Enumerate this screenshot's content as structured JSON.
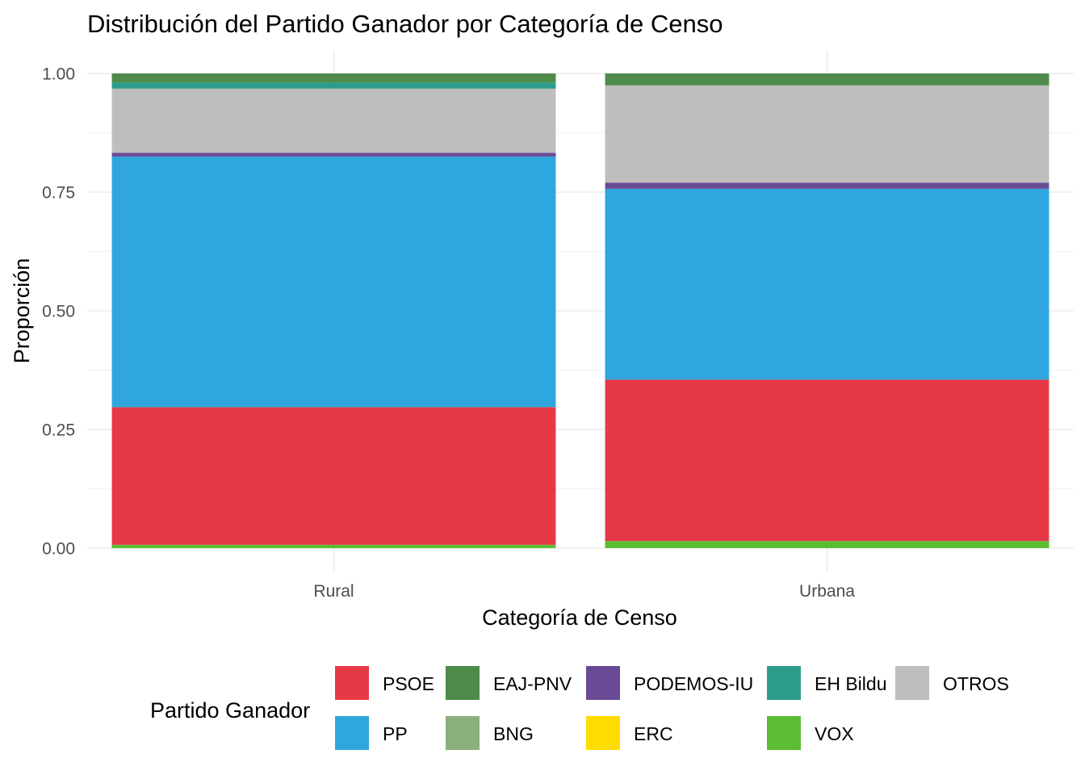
{
  "chart_data": {
    "type": "bar",
    "stacked": true,
    "title": "Distribución del Partido Ganador por Categoría de Censo",
    "xlabel": "Categoría de Censo",
    "ylabel": "Proporción",
    "ylim": [
      0,
      1
    ],
    "yticks": [
      "0.00",
      "0.25",
      "0.50",
      "0.75",
      "1.00"
    ],
    "categories": [
      "Rural",
      "Urbana"
    ],
    "series": [
      {
        "name": "VOX",
        "color": "#5bbd32",
        "values": [
          0.007,
          0.015
        ]
      },
      {
        "name": "PSOE",
        "color": "#e63946",
        "values": [
          0.29,
          0.34
        ]
      },
      {
        "name": "PP",
        "color": "#2fa6dd",
        "values": [
          0.528,
          0.402
        ]
      },
      {
        "name": "PODEMOS-IU",
        "color": "#6a4a94",
        "values": [
          0.008,
          0.013
        ]
      },
      {
        "name": "OTROS",
        "color": "#bebebe",
        "values": [
          0.135,
          0.205
        ]
      },
      {
        "name": "EH Bildu",
        "color": "#2c9c8c",
        "values": [
          0.013,
          0.0
        ]
      },
      {
        "name": "EAJ-PNV",
        "color": "#4e8b4a",
        "values": [
          0.019,
          0.025
        ]
      }
    ],
    "legend": {
      "title": "Partido Ganador",
      "position": "bottom",
      "items": [
        {
          "label": "PSOE",
          "color": "#e63946"
        },
        {
          "label": "PP",
          "color": "#2fa6dd"
        },
        {
          "label": "EAJ-PNV",
          "color": "#4e8b4a"
        },
        {
          "label": "BNG",
          "color": "#8bb07b"
        },
        {
          "label": "PODEMOS-IU",
          "color": "#6a4a94"
        },
        {
          "label": "ERC",
          "color": "#ffdd00"
        },
        {
          "label": "EH Bildu",
          "color": "#2c9c8c"
        },
        {
          "label": "VOX",
          "color": "#5bbd32"
        },
        {
          "label": "OTROS",
          "color": "#bebebe"
        }
      ]
    },
    "grid": true
  }
}
